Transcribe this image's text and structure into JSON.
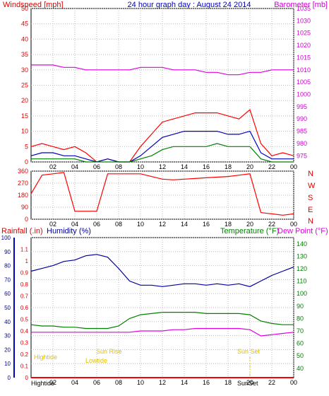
{
  "header": {
    "left": "Windspeed [mph]",
    "center": "24 hour graph day : August 24 2014",
    "right": "Barometer [mb]"
  },
  "colors": {
    "wind_max": "#ff0000",
    "wind_avg": "#0000c0",
    "wind_min": "#008000",
    "barometer": "#e000e0",
    "direction": "#ff0000",
    "humidity": "#0000a0",
    "temperature": "#008000",
    "dewpoint": "#e000e0",
    "rainfall": "#ff0000",
    "sun_labels": "#e0c000"
  },
  "panel3_labels": {
    "rain": "Rainfall (.in)",
    "humidity": "Humidity (%)",
    "temperature": "Temperature (°F)",
    "dewpoint": "Dew Point (°F)"
  },
  "compass": [
    "N",
    "W",
    "S",
    "E",
    "N"
  ],
  "sun_events": {
    "high_tide_top": "Hightide",
    "low_tide": "Lowtide",
    "sunrise": "Sun Rise",
    "sunset": "Sun Set",
    "high_tide_bottom": "Hightide",
    "sunset_bottom": "SunSet"
  },
  "chart_data": [
    {
      "type": "line",
      "name": "wind-barometer",
      "x_ticks": [
        "02",
        "04",
        "06",
        "08",
        "10",
        "12",
        "14",
        "16",
        "18",
        "20",
        "22",
        "00"
      ],
      "y_left_ticks": [
        "0",
        "5",
        "10",
        "15",
        "20",
        "25",
        "30",
        "35",
        "40",
        "45",
        "50"
      ],
      "y_left_lim": [
        0,
        50
      ],
      "y_right_ticks": [
        "975",
        "980",
        "985",
        "990",
        "995",
        "1000",
        "1005",
        "1010",
        "1015",
        "1020",
        "1025",
        "1030",
        "1035"
      ],
      "y_right_lim": [
        972.5,
        1035
      ],
      "series": [
        {
          "key": "wind_max",
          "values_hourly": [
            5,
            6,
            5,
            4,
            5,
            3,
            0,
            1,
            0,
            0,
            5,
            9,
            13,
            14,
            15,
            16,
            16,
            16,
            15,
            14,
            17,
            6,
            2,
            3,
            2
          ]
        },
        {
          "key": "wind_avg",
          "values_hourly": [
            2,
            3,
            3,
            2,
            2,
            1,
            0,
            1,
            0,
            0,
            2,
            5,
            8,
            9,
            10,
            10,
            10,
            10,
            9,
            9,
            10,
            3,
            1,
            1,
            1
          ]
        },
        {
          "key": "wind_min",
          "values_hourly": [
            1,
            1,
            1,
            1,
            1,
            0,
            0,
            0,
            0,
            0,
            1,
            2,
            4,
            5,
            5,
            5,
            5,
            6,
            5,
            5,
            5,
            1,
            0,
            0,
            0
          ]
        },
        {
          "key": "barometer",
          "values_hourly": [
            1012,
            1012,
            1012,
            1011,
            1011,
            1010,
            1010,
            1010,
            1010,
            1010,
            1011,
            1011,
            1011,
            1010,
            1010,
            1010,
            1009,
            1009,
            1008,
            1008,
            1009,
            1009,
            1010,
            1010,
            1010
          ]
        }
      ]
    },
    {
      "type": "line",
      "name": "wind-direction",
      "x_ticks": [
        "02",
        "04",
        "06",
        "08",
        "10",
        "12",
        "14",
        "16",
        "18",
        "20",
        "22",
        "00"
      ],
      "y_ticks": [
        "0",
        "90",
        "180",
        "270",
        "360"
      ],
      "ylim": [
        0,
        360
      ],
      "series": [
        {
          "key": "direction",
          "values_hourly": [
            190,
            330,
            340,
            350,
            60,
            60,
            60,
            340,
            340,
            340,
            340,
            320,
            300,
            295,
            300,
            305,
            310,
            315,
            320,
            330,
            340,
            50,
            40,
            30,
            40
          ]
        }
      ]
    },
    {
      "type": "line",
      "name": "humidity-temperature",
      "x_ticks": [
        "02",
        "04",
        "06",
        "08",
        "10",
        "12",
        "14",
        "16",
        "18",
        "20",
        "22",
        "00"
      ],
      "y_humidity_ticks": [
        "0",
        "10",
        "20",
        "30",
        "40",
        "50",
        "60",
        "70",
        "80",
        "90",
        "100"
      ],
      "humidity_lim": [
        0,
        100
      ],
      "y_rain_ticks": [
        "0",
        "0.1",
        "0.2",
        "0.3",
        "0.4",
        "0.5",
        "0.6",
        "0.7",
        "0.8",
        "0.9",
        "1",
        "1.1"
      ],
      "rain_lim": [
        0,
        1.2
      ],
      "y_temp_ticks": [
        "40",
        "50",
        "60",
        "70",
        "80",
        "90",
        "100",
        "110",
        "120",
        "130",
        "140"
      ],
      "temp_lim": [
        32.5,
        145
      ],
      "series": [
        {
          "key": "humidity",
          "values_hourly": [
            76,
            78,
            80,
            83,
            84,
            87,
            88,
            86,
            78,
            69,
            66,
            66,
            65,
            66,
            67,
            67,
            66,
            67,
            66,
            67,
            65,
            69,
            73,
            76,
            79
          ]
        },
        {
          "key": "temperature",
          "values_hourly": [
            75,
            74,
            74,
            73,
            73,
            72,
            72,
            72,
            74,
            80,
            83,
            84,
            85,
            85,
            85,
            85,
            84,
            84,
            84,
            84,
            83,
            78,
            76,
            75,
            75
          ]
        },
        {
          "key": "dewpoint",
          "values_hourly": [
            69,
            69,
            69,
            69,
            69,
            69,
            69,
            69,
            69,
            69,
            70,
            70,
            70,
            71,
            71,
            72,
            72,
            72,
            72,
            72,
            71,
            66,
            67,
            68,
            69
          ]
        },
        {
          "key": "rainfall",
          "values_hourly": [
            0,
            0,
            0,
            0,
            0,
            0,
            0,
            0,
            0,
            0,
            0,
            0,
            0,
            0,
            0,
            0,
            0,
            0,
            0,
            0,
            0,
            0,
            0,
            0,
            0
          ]
        }
      ]
    }
  ]
}
